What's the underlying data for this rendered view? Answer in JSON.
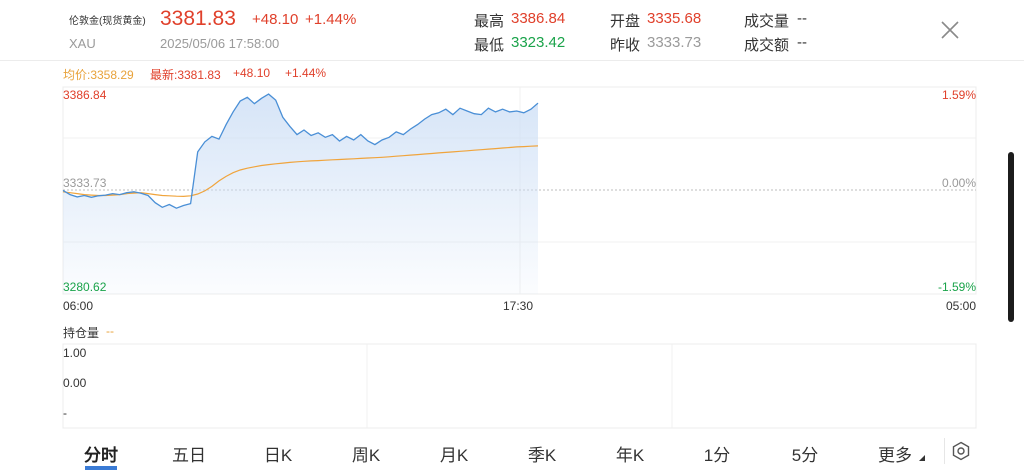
{
  "header": {
    "name": "伦敦金(现货黄金)",
    "code": "XAU",
    "price": "3381.83",
    "change": "+48.10",
    "change_pct": "+1.44%",
    "datetime": "2025/05/06 17:58:00",
    "high_label": "最高",
    "high_value": "3386.84",
    "low_label": "最低",
    "low_value": "3323.42",
    "open_label": "开盘",
    "open_value": "3335.68",
    "prev_close_label": "昨收",
    "prev_close_value": "3333.73",
    "volume_label": "成交量",
    "volume_value": "--",
    "amount_label": "成交额",
    "amount_value": "--",
    "close_icon": "close-icon"
  },
  "legend": {
    "avg_label": "均价:3358.29",
    "latest_label": "最新:3381.83",
    "change": "+48.10",
    "change_pct": "+1.44%"
  },
  "price_axis": {
    "top": "3386.84",
    "mid": "3333.73",
    "bottom": "3280.62",
    "pct_top": "1.59%",
    "pct_mid": "0.00%",
    "pct_bottom": "-1.59%"
  },
  "time_axis": {
    "start": "06:00",
    "mid": "17:30",
    "end": "05:00"
  },
  "position_panel": {
    "label": "持仓量",
    "value": "--",
    "tick_top": "1.00",
    "tick_mid": "0.00",
    "tick_bottom": "-"
  },
  "tabs": [
    {
      "label": "分时",
      "active": true
    },
    {
      "label": "五日"
    },
    {
      "label": "日K"
    },
    {
      "label": "周K"
    },
    {
      "label": "月K"
    },
    {
      "label": "季K"
    },
    {
      "label": "年K"
    },
    {
      "label": "1分"
    },
    {
      "label": "5分"
    },
    {
      "label": "更多"
    }
  ],
  "settings_icon": "settings-icon",
  "colors": {
    "up": "#e0402b",
    "down": "#1aa34a",
    "price_line": "#4a8fd6",
    "avg_line": "#f0a43c"
  },
  "chart_data": {
    "type": "line",
    "x_start": "06:00",
    "x_end": "05:00",
    "x_mid": "17:30",
    "ylim": [
      3280.62,
      3386.84
    ],
    "reference": 3333.73,
    "series": [
      {
        "name": "最新",
        "values": [
          3333.8,
          3331.5,
          3330.2,
          3331.0,
          3330.0,
          3330.8,
          3331.2,
          3332.0,
          3331.5,
          3332.5,
          3333.0,
          3332.2,
          3331.0,
          3327.0,
          3324.5,
          3326.0,
          3324.0,
          3325.5,
          3326.5,
          3355.0,
          3360.5,
          3363.5,
          3362.0,
          3370.0,
          3377.0,
          3383.0,
          3385.0,
          3381.5,
          3384.5,
          3386.8,
          3383.5,
          3374.0,
          3369.0,
          3364.5,
          3367.0,
          3364.0,
          3365.5,
          3363.0,
          3364.5,
          3361.0,
          3363.5,
          3361.5,
          3364.5,
          3361.0,
          3359.0,
          3361.5,
          3363.0,
          3366.0,
          3364.5,
          3367.5,
          3370.0,
          3373.0,
          3375.5,
          3376.5,
          3378.5,
          3375.5,
          3379.0,
          3377.5,
          3376.0,
          3375.5,
          3379.0,
          3377.0,
          3378.5,
          3377.0,
          3377.5,
          3376.5,
          3378.5,
          3381.83
        ]
      },
      {
        "name": "均价",
        "values": [
          3333.0,
          3332.5,
          3332.0,
          3331.5,
          3331.2,
          3331.0,
          3331.0,
          3331.2,
          3331.5,
          3332.0,
          3332.3,
          3332.5,
          3332.0,
          3331.5,
          3331.0,
          3330.8,
          3330.6,
          3330.5,
          3330.8,
          3331.8,
          3333.5,
          3336.0,
          3339.0,
          3341.5,
          3343.5,
          3345.0,
          3346.0,
          3346.8,
          3347.5,
          3348.0,
          3348.4,
          3348.8,
          3349.2,
          3349.5,
          3349.8,
          3350.0,
          3350.2,
          3350.4,
          3350.6,
          3350.8,
          3351.0,
          3351.2,
          3351.4,
          3351.6,
          3351.8,
          3352.0,
          3352.3,
          3352.6,
          3352.9,
          3353.2,
          3353.5,
          3353.8,
          3354.1,
          3354.4,
          3354.7,
          3355.0,
          3355.3,
          3355.6,
          3355.9,
          3356.2,
          3356.5,
          3356.8,
          3357.1,
          3357.4,
          3357.7,
          3357.9,
          3358.1,
          3358.29
        ]
      }
    ]
  }
}
